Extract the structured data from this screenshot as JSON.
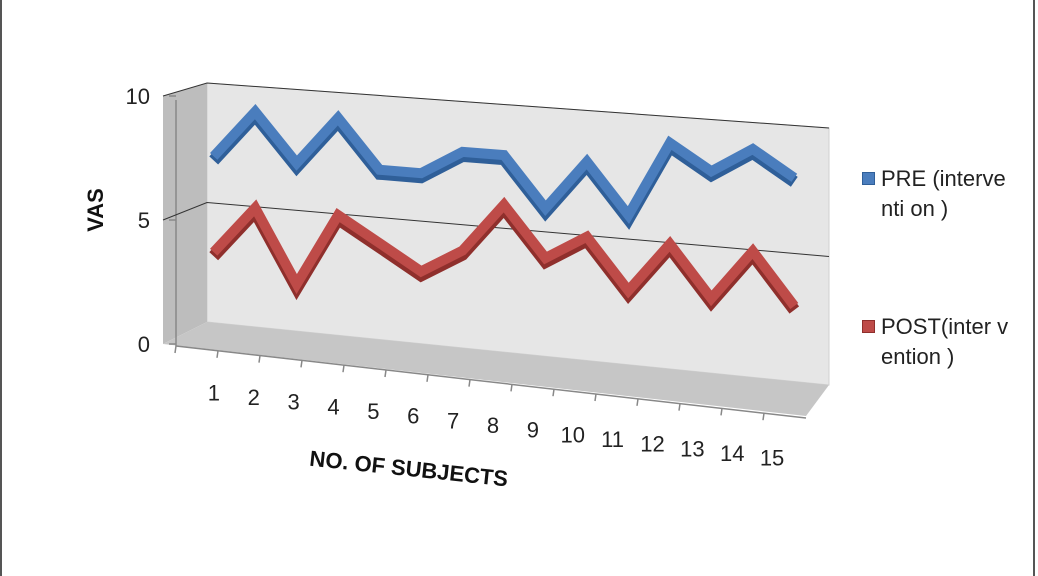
{
  "chart_data": {
    "type": "line",
    "style": "3d",
    "title": "",
    "xlabel": "NO. OF SUBJECTS",
    "ylabel": "VAS",
    "categories": [
      "1",
      "2",
      "3",
      "4",
      "5",
      "6",
      "7",
      "8",
      "9",
      "10",
      "11",
      "12",
      "13",
      "14",
      "15"
    ],
    "ylim": [
      0,
      10
    ],
    "yticks": [
      "0",
      "5",
      "10"
    ],
    "grid": true,
    "legend_position": "right",
    "series": [
      {
        "name": "PRE (interventi on )",
        "color": "#4a7dbd",
        "values": [
          7,
          9,
          7,
          9,
          7,
          7,
          8,
          8,
          6,
          8,
          6,
          9,
          8,
          9,
          8
        ]
      },
      {
        "name": "POST(inter vention )",
        "color": "#be4b48",
        "values": [
          3,
          5,
          2,
          5,
          4,
          3,
          4,
          6,
          4,
          5,
          3,
          5,
          3,
          5,
          3
        ]
      }
    ]
  }
}
